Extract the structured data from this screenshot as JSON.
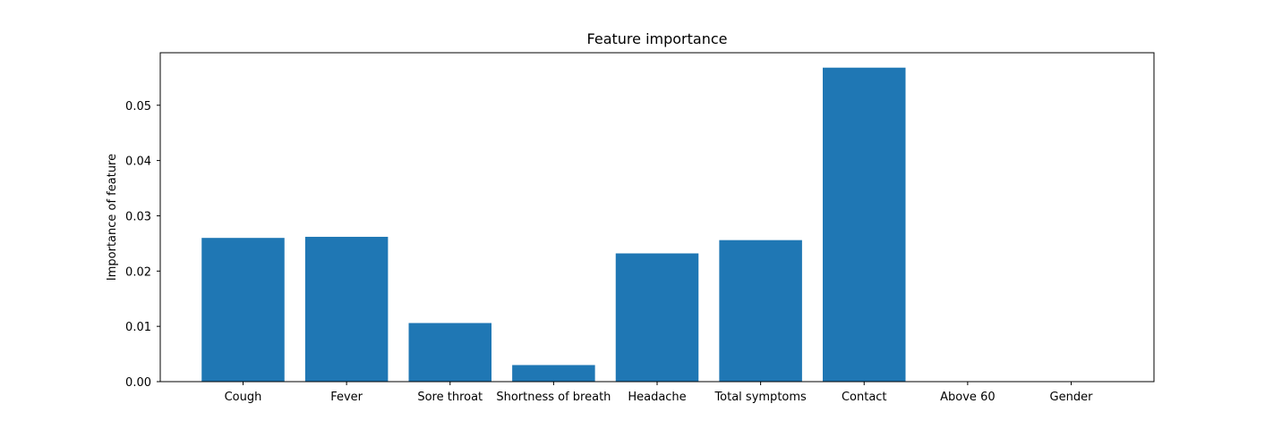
{
  "chart_data": {
    "type": "bar",
    "title": "Feature importance",
    "xlabel": "",
    "ylabel": "Importance of feature",
    "categories": [
      "Cough",
      "Fever",
      "Sore throat",
      "Shortness of breath",
      "Headache",
      "Total symptoms",
      "Contact",
      "Above 60",
      "Gender"
    ],
    "values": [
      0.026,
      0.0262,
      0.0106,
      0.003,
      0.0232,
      0.0256,
      0.0568,
      0.0,
      0.0
    ],
    "ylim": [
      0,
      0.0595
    ],
    "yticks": [
      0.0,
      0.01,
      0.02,
      0.03,
      0.04,
      0.05
    ],
    "ytick_labels": [
      "0.00",
      "0.01",
      "0.02",
      "0.03",
      "0.04",
      "0.05"
    ],
    "grid": false,
    "bar_color": "#1f77b4"
  }
}
